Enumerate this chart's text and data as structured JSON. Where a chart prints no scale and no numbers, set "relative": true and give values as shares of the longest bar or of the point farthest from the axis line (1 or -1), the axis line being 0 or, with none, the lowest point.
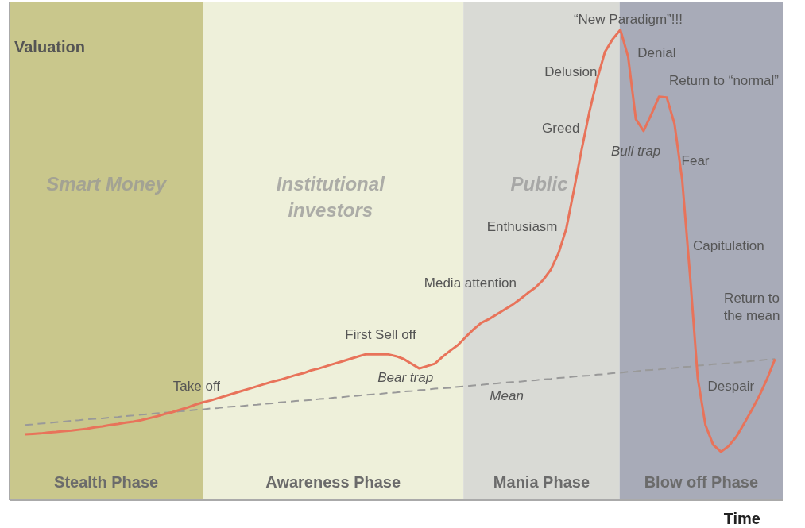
{
  "chart_data": {
    "type": "line",
    "xlabel": "Time",
    "ylabel": "Valuation",
    "relative": true,
    "categories": [
      null,
      null,
      null,
      null,
      null,
      null,
      null,
      null,
      null,
      null,
      null,
      null,
      null,
      null,
      null,
      null,
      null,
      null,
      null,
      null,
      null,
      null,
      null,
      null,
      null,
      null,
      null,
      null,
      null,
      null,
      null,
      null,
      null,
      null,
      null,
      null,
      null,
      null,
      null,
      null,
      null,
      null,
      null,
      null,
      null,
      null,
      null,
      null,
      null,
      null,
      null,
      null,
      null,
      null,
      null,
      null,
      null,
      null,
      null,
      null,
      null,
      null,
      null,
      null,
      null,
      null,
      null,
      null,
      null,
      null,
      null,
      null,
      null,
      null,
      null,
      null,
      null,
      null,
      null,
      null,
      null,
      null,
      null,
      null,
      null,
      null,
      null,
      null,
      null,
      null,
      null,
      null,
      null,
      null,
      null,
      null,
      null,
      null,
      null,
      null,
      null
    ],
    "series": [
      {
        "color": "#e8735a",
        "line_style": "solid",
        "values": [
          null,
          null,
          0.14,
          0.141,
          0.142,
          0.144,
          0.145,
          0.147,
          0.148,
          0.15,
          0.152,
          0.155,
          0.157,
          0.16,
          0.162,
          0.165,
          0.167,
          0.17,
          0.174,
          0.178,
          0.183,
          0.187,
          0.192,
          0.197,
          0.203,
          0.208,
          0.212,
          0.217,
          0.222,
          0.227,
          0.232,
          0.237,
          0.242,
          0.247,
          0.252,
          0.256,
          0.261,
          0.266,
          0.27,
          0.276,
          0.28,
          0.285,
          0.29,
          0.295,
          0.3,
          0.305,
          0.31,
          0.31,
          0.31,
          0.31,
          0.306,
          0.3,
          0.29,
          0.28,
          0.285,
          0.29,
          0.305,
          0.318,
          0.33,
          0.347,
          0.363,
          0.377,
          0.385,
          0.395,
          0.405,
          0.415,
          0.427,
          0.44,
          0.452,
          0.468,
          0.49,
          0.525,
          0.577,
          0.66,
          0.746,
          0.826,
          0.895,
          0.953,
          0.98,
          1,
          0.943,
          0.81,
          0.785,
          0.82,
          0.858,
          0.856,
          0.8,
          0.68,
          0.48,
          0.26,
          0.16,
          0.118,
          0.103,
          0.115,
          0.135,
          0.163,
          0.192,
          0.223,
          0.259,
          0.3,
          null
        ]
      },
      {
        "color": "#999999",
        "line_style": "dashed",
        "values": [
          null,
          null,
          0.16,
          0.161,
          0.163,
          0.164,
          0.166,
          0.167,
          0.169,
          0.17,
          0.172,
          0.173,
          0.174,
          0.176,
          0.177,
          0.179,
          0.18,
          0.182,
          0.183,
          0.185,
          0.186,
          0.187,
          0.189,
          0.19,
          0.192,
          0.193,
          0.195,
          0.196,
          0.198,
          0.199,
          0.2,
          0.202,
          0.203,
          0.205,
          0.206,
          0.208,
          0.209,
          0.211,
          0.212,
          0.213,
          0.215,
          0.216,
          0.218,
          0.219,
          0.221,
          0.222,
          0.224,
          0.225,
          0.226,
          0.228,
          0.229,
          0.231,
          0.232,
          0.234,
          0.235,
          0.237,
          0.238,
          0.239,
          0.241,
          0.242,
          0.244,
          0.245,
          0.247,
          0.248,
          0.25,
          0.251,
          0.252,
          0.254,
          0.255,
          0.257,
          0.258,
          0.26,
          0.261,
          0.263,
          0.264,
          0.265,
          0.267,
          0.268,
          0.27,
          0.271,
          0.273,
          0.274,
          0.276,
          0.277,
          0.278,
          0.28,
          0.281,
          0.283,
          0.284,
          0.286,
          0.287,
          0.289,
          0.29,
          0.291,
          0.293,
          0.294,
          0.296,
          0.297,
          0.299,
          0.3,
          null
        ]
      }
    ],
    "annotations": [
      "Stealth Phase",
      "Awareness Phase",
      "Mania Phase",
      "Blow off Phase",
      "Smart Money",
      "Institutional\ninvestors",
      "Public",
      "Take off",
      "First Sell off",
      "Bear trap",
      "Mean",
      "Media attention",
      "Enthusiasm",
      "Greed",
      "Delusion",
      "“New Paradigm”!!!",
      "Denial",
      "Return to “normal”",
      "Bull trap",
      "Fear",
      "Capitulation",
      "Despair",
      "Return to\nthe mean"
    ]
  }
}
